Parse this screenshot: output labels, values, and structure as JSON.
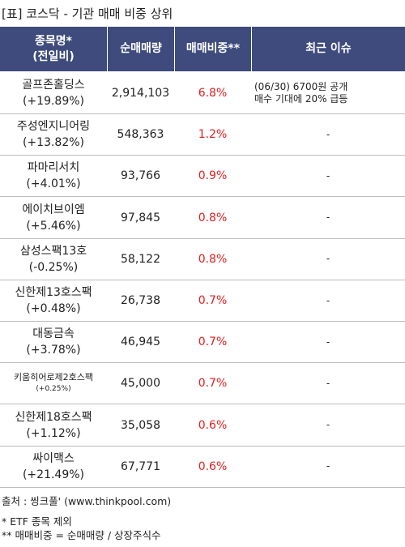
{
  "title": "[표] 코스닥 - 기관 매매 비중 상위",
  "table": {
    "header": {
      "name": [
        "종목명*",
        "(전일비)"
      ],
      "volume": "순매매량",
      "ratio": "매매비중**",
      "issue": "최근 이슈"
    },
    "rows": [
      {
        "name": "골프존홀딩스",
        "change": "(+19.89%)",
        "volume": "2,914,103",
        "ratio": "6.8%",
        "issue": [
          "(06/30) 6700원 공개",
          "매수 기대에 20% 급등"
        ]
      },
      {
        "name": "주성엔지니어링",
        "change": "(+13.82%)",
        "volume": "548,363",
        "ratio": "1.2%",
        "issue": [
          "-"
        ]
      },
      {
        "name": "파마리서치",
        "change": "(+4.01%)",
        "volume": "93,766",
        "ratio": "0.9%",
        "issue": [
          "-"
        ]
      },
      {
        "name": "에이치브이엠",
        "change": "(+5.46%)",
        "volume": "97,845",
        "ratio": "0.8%",
        "issue": [
          "-"
        ]
      },
      {
        "name": "삼성스팩13호",
        "change": "(-0.25%)",
        "volume": "58,122",
        "ratio": "0.8%",
        "issue": [
          "-"
        ]
      },
      {
        "name": "신한제13호스팩",
        "change": "(+0.48%)",
        "volume": "26,738",
        "ratio": "0.7%",
        "issue": [
          "-"
        ]
      },
      {
        "name": "대동금속",
        "change": "(+3.78%)",
        "volume": "46,945",
        "ratio": "0.7%",
        "issue": [
          "-"
        ]
      },
      {
        "name": "키움히어로제2호스팩",
        "change": "(+0.25%)",
        "volume": "45,000",
        "ratio": "0.7%",
        "issue": [
          "-"
        ],
        "small": true
      },
      {
        "name": "신한제18호스팩",
        "change": "(+1.12%)",
        "volume": "35,058",
        "ratio": "0.6%",
        "issue": [
          "-"
        ]
      },
      {
        "name": "싸이맥스",
        "change": "(+21.49%)",
        "volume": "67,771",
        "ratio": "0.6%",
        "issue": [
          "-"
        ]
      }
    ]
  },
  "footer": {
    "source": "출처 : 씽크풀' (www.thinkpool.com)",
    "notes": [
      "* ETF 종목 제외",
      "** 매매비중 = 순매매량 / 상장주식수"
    ]
  }
}
